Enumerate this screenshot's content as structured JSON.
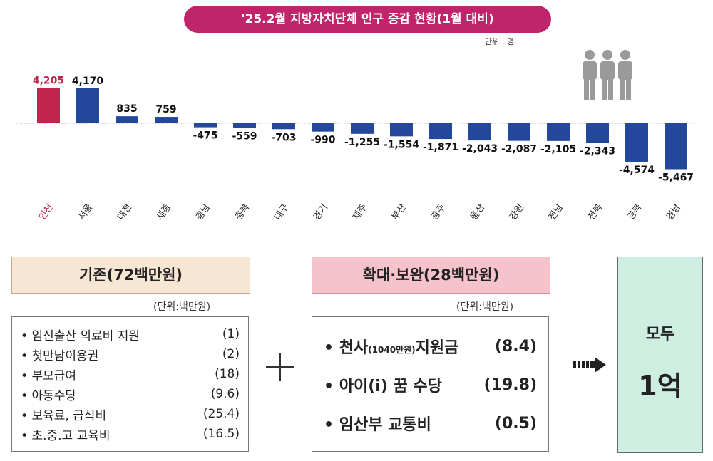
{
  "title": "'25.2월 지방자치단체 인구 증감 현황(1월 대비)",
  "unit": "단위 : 명",
  "colors": {
    "highlight": "#c0244c",
    "bar": "#23479a",
    "title_bg": "#c0246a"
  },
  "chart_data": {
    "type": "bar",
    "title": "'25.2월 지방자치단체 인구 증감 현황(1월 대비)",
    "categories": [
      "인천",
      "서울",
      "대전",
      "세종",
      "충남",
      "충북",
      "대구",
      "경기",
      "제주",
      "부산",
      "광주",
      "울산",
      "강원",
      "전남",
      "전북",
      "경북",
      "경남"
    ],
    "values": [
      4205,
      4170,
      835,
      759,
      -475,
      -559,
      -703,
      -990,
      -1255,
      -1554,
      -1871,
      -2043,
      -2087,
      -2105,
      -2343,
      -4574,
      -5467
    ],
    "value_labels": [
      "4,205",
      "4,170",
      "835",
      "759",
      "-475",
      "-559",
      "-703",
      "-990",
      "-1,255",
      "-1,554",
      "-1,871",
      "-2,043",
      "-2,087",
      "-2,105",
      "-2,343",
      "-4,574",
      "-5,467"
    ],
    "highlight_index": 0,
    "xlabel": "",
    "ylabel": "",
    "ylim": [
      -5467,
      4205
    ],
    "grid": false,
    "legend": "none"
  },
  "existing": {
    "header": "기존(72백만원)",
    "unit": "(단위:백만원)",
    "items": [
      {
        "label": "임신출산 의료비 지원",
        "value": "(1)"
      },
      {
        "label": "첫만남이용권",
        "value": "(2)"
      },
      {
        "label": "부모급여",
        "value": "(18)"
      },
      {
        "label": "아동수당",
        "value": "(9.6)"
      },
      {
        "label": "보육료, 급식비",
        "value": "(25.4)"
      },
      {
        "label": "초.중.고 교육비",
        "value": "(16.5)"
      }
    ]
  },
  "expanded": {
    "header": "확대·보완(28백만원)",
    "unit": "(단위:백만원)",
    "items": [
      {
        "label_main": "천사",
        "label_small": "(1040만원)",
        "label_tail": "지원금",
        "value": "(8.4)"
      },
      {
        "label_main": "아이(i) 꿈 수당",
        "label_small": "",
        "label_tail": "",
        "value": "(19.8)"
      },
      {
        "label_main": "임산부  교통비",
        "label_small": "",
        "label_tail": "",
        "value": "(0.5)"
      }
    ]
  },
  "result": {
    "label": "모두",
    "value": "1억"
  },
  "icons": [
    "people-icon",
    "plus-icon",
    "arrow-right-icon"
  ]
}
